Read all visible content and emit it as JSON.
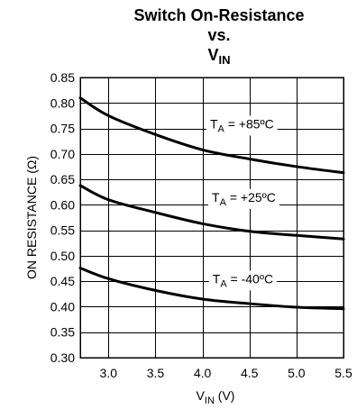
{
  "chart_data": {
    "type": "line",
    "title": {
      "line1": "Switch On-Resistance",
      "line2": "vs.",
      "line3_main": "V",
      "line3_sub": "IN"
    },
    "xlabel": {
      "main": "V",
      "sub": "IN",
      "suffix": " (V)"
    },
    "ylabel": "ON RESISTANCE (Ω)",
    "xlim": [
      2.7,
      5.5
    ],
    "ylim": [
      0.3,
      0.85
    ],
    "xticks": [
      3.0,
      3.5,
      4.0,
      4.5,
      5.0,
      5.5
    ],
    "xtick_labels": [
      "3.0",
      "3.5",
      "4.0",
      "4.5",
      "5.0",
      "5.5"
    ],
    "yticks": [
      0.3,
      0.35,
      0.4,
      0.45,
      0.5,
      0.55,
      0.6,
      0.65,
      0.7,
      0.75,
      0.8,
      0.85
    ],
    "ytick_labels": [
      "0.30",
      "0.35",
      "0.40",
      "0.45",
      "0.50",
      "0.55",
      "0.60",
      "0.65",
      "0.70",
      "0.75",
      "0.80",
      "0.85"
    ],
    "grid": true,
    "legend": "none",
    "series": [
      {
        "label": {
          "pre": "T",
          "sub": "A",
          "post": " = +85ºC"
        },
        "x": [
          2.7,
          3.0,
          3.5,
          4.0,
          4.5,
          5.0,
          5.5
        ],
        "y": [
          0.81,
          0.775,
          0.738,
          0.708,
          0.69,
          0.675,
          0.663
        ],
        "label_at": [
          4.42,
          0.759
        ]
      },
      {
        "label": {
          "pre": "T",
          "sub": "A",
          "post": " = +25ºC"
        },
        "x": [
          2.7,
          3.0,
          3.5,
          4.0,
          4.5,
          5.0,
          5.5
        ],
        "y": [
          0.638,
          0.61,
          0.585,
          0.563,
          0.548,
          0.54,
          0.533
        ],
        "label_at": [
          4.44,
          0.615
        ]
      },
      {
        "label": {
          "pre": "T",
          "sub": "A",
          "post": " = -40ºC"
        },
        "x": [
          2.7,
          3.0,
          3.5,
          4.0,
          4.5,
          5.0,
          5.5
        ],
        "y": [
          0.476,
          0.455,
          0.432,
          0.415,
          0.406,
          0.399,
          0.396
        ],
        "label_at": [
          4.43,
          0.455
        ]
      }
    ]
  }
}
